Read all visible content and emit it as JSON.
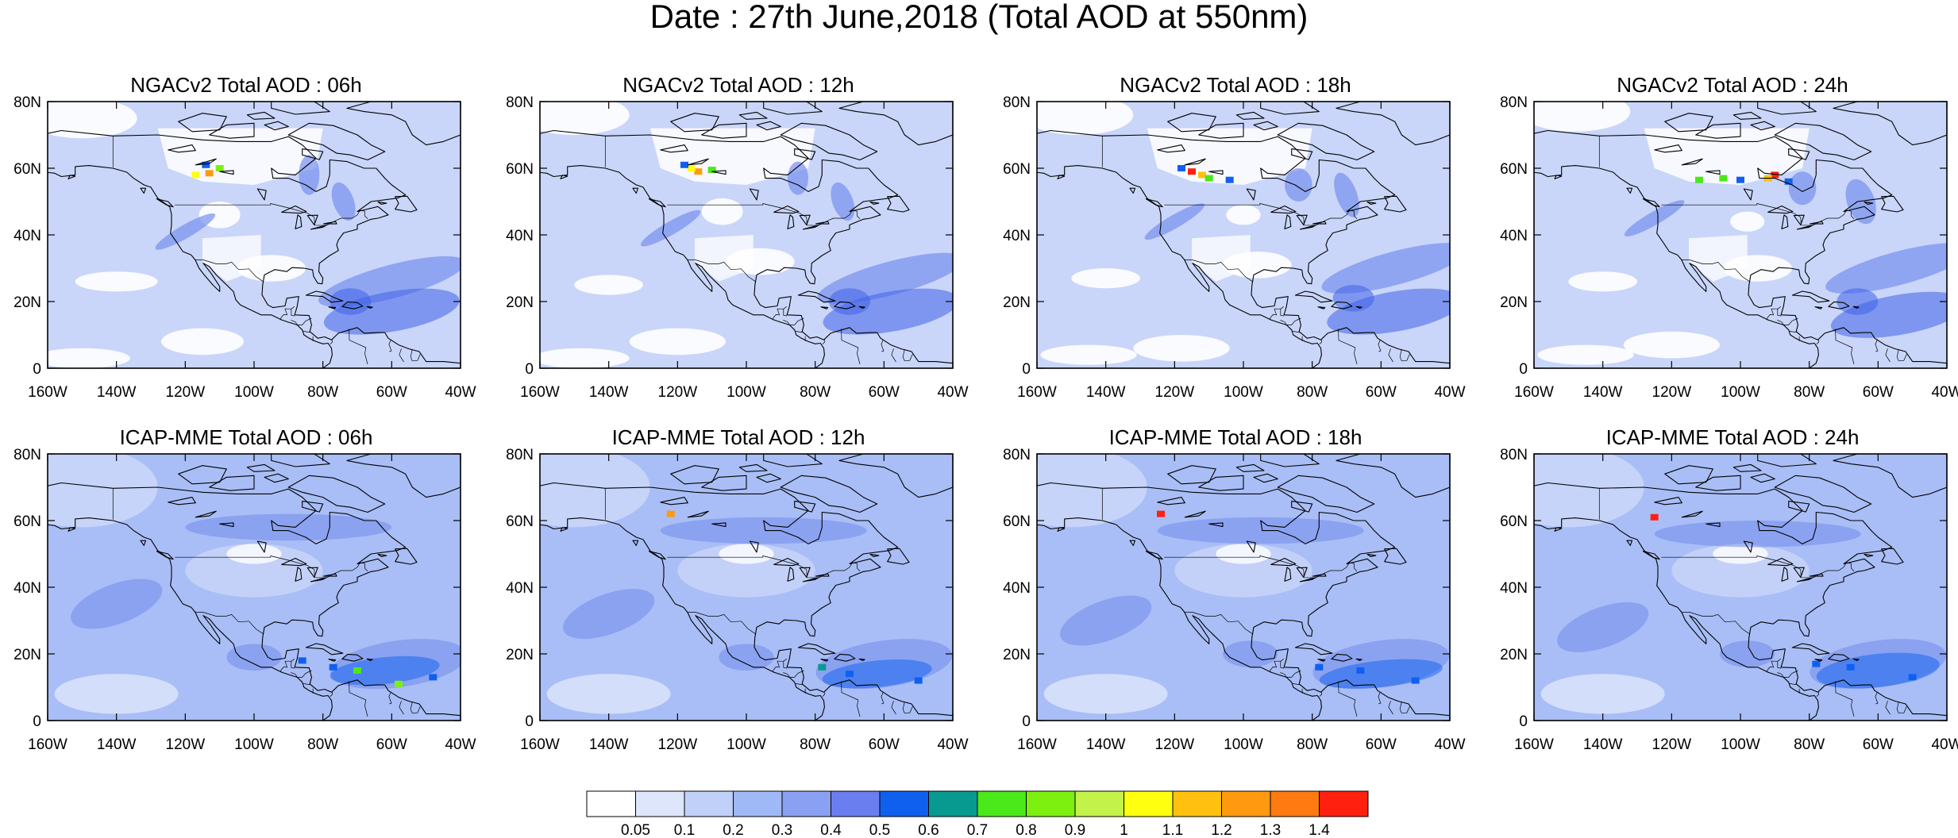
{
  "title": "Date : 27th June,2018 (Total AOD at 550nm)",
  "map": {
    "lon_range": [
      -160,
      -40
    ],
    "lat_range": [
      0,
      80
    ],
    "x_ticks": [
      "160W",
      "140W",
      "120W",
      "100W",
      "80W",
      "60W",
      "40W"
    ],
    "y_ticks": [
      "0",
      "20N",
      "40N",
      "60N",
      "80N"
    ]
  },
  "panels": [
    {
      "title": "NGACv2 Total AOD : 06h",
      "model": "NGACv2",
      "hour": "06h"
    },
    {
      "title": "NGACv2 Total AOD : 12h",
      "model": "NGACv2",
      "hour": "12h"
    },
    {
      "title": "NGACv2 Total AOD : 18h",
      "model": "NGACv2",
      "hour": "18h"
    },
    {
      "title": "NGACv2 Total AOD : 24h",
      "model": "NGACv2",
      "hour": "24h"
    },
    {
      "title": "ICAP-MME Total AOD : 06h",
      "model": "ICAP-MME",
      "hour": "06h"
    },
    {
      "title": "ICAP-MME Total AOD : 12h",
      "model": "ICAP-MME",
      "hour": "12h"
    },
    {
      "title": "ICAP-MME Total AOD : 18h",
      "model": "ICAP-MME",
      "hour": "18h"
    },
    {
      "title": "ICAP-MME Total AOD : 24h",
      "model": "ICAP-MME",
      "hour": "24h"
    }
  ],
  "colorbar": {
    "labels": [
      "0.05",
      "0.1",
      "0.2",
      "0.3",
      "0.4",
      "0.5",
      "0.6",
      "0.7",
      "0.8",
      "0.9",
      "1",
      "1.1",
      "1.2",
      "1.3",
      "1.4"
    ],
    "colors": [
      "#ffffff",
      "#dde6fb",
      "#c0d0f8",
      "#9fb8f6",
      "#8aa0f2",
      "#6b7ef0",
      "#1060f0",
      "#079a90",
      "#4be81a",
      "#7df010",
      "#c3f24a",
      "#ffff10",
      "#ffc010",
      "#ff9a10",
      "#ff7a10",
      "#ff2010"
    ]
  },
  "palette": {
    "land_white": "#ffffff",
    "background": "#c9d6f9",
    "light": "#dde6fb",
    "medium": "#a9bef6",
    "dark": "#7890ee",
    "deep": "#3f62e8"
  }
}
